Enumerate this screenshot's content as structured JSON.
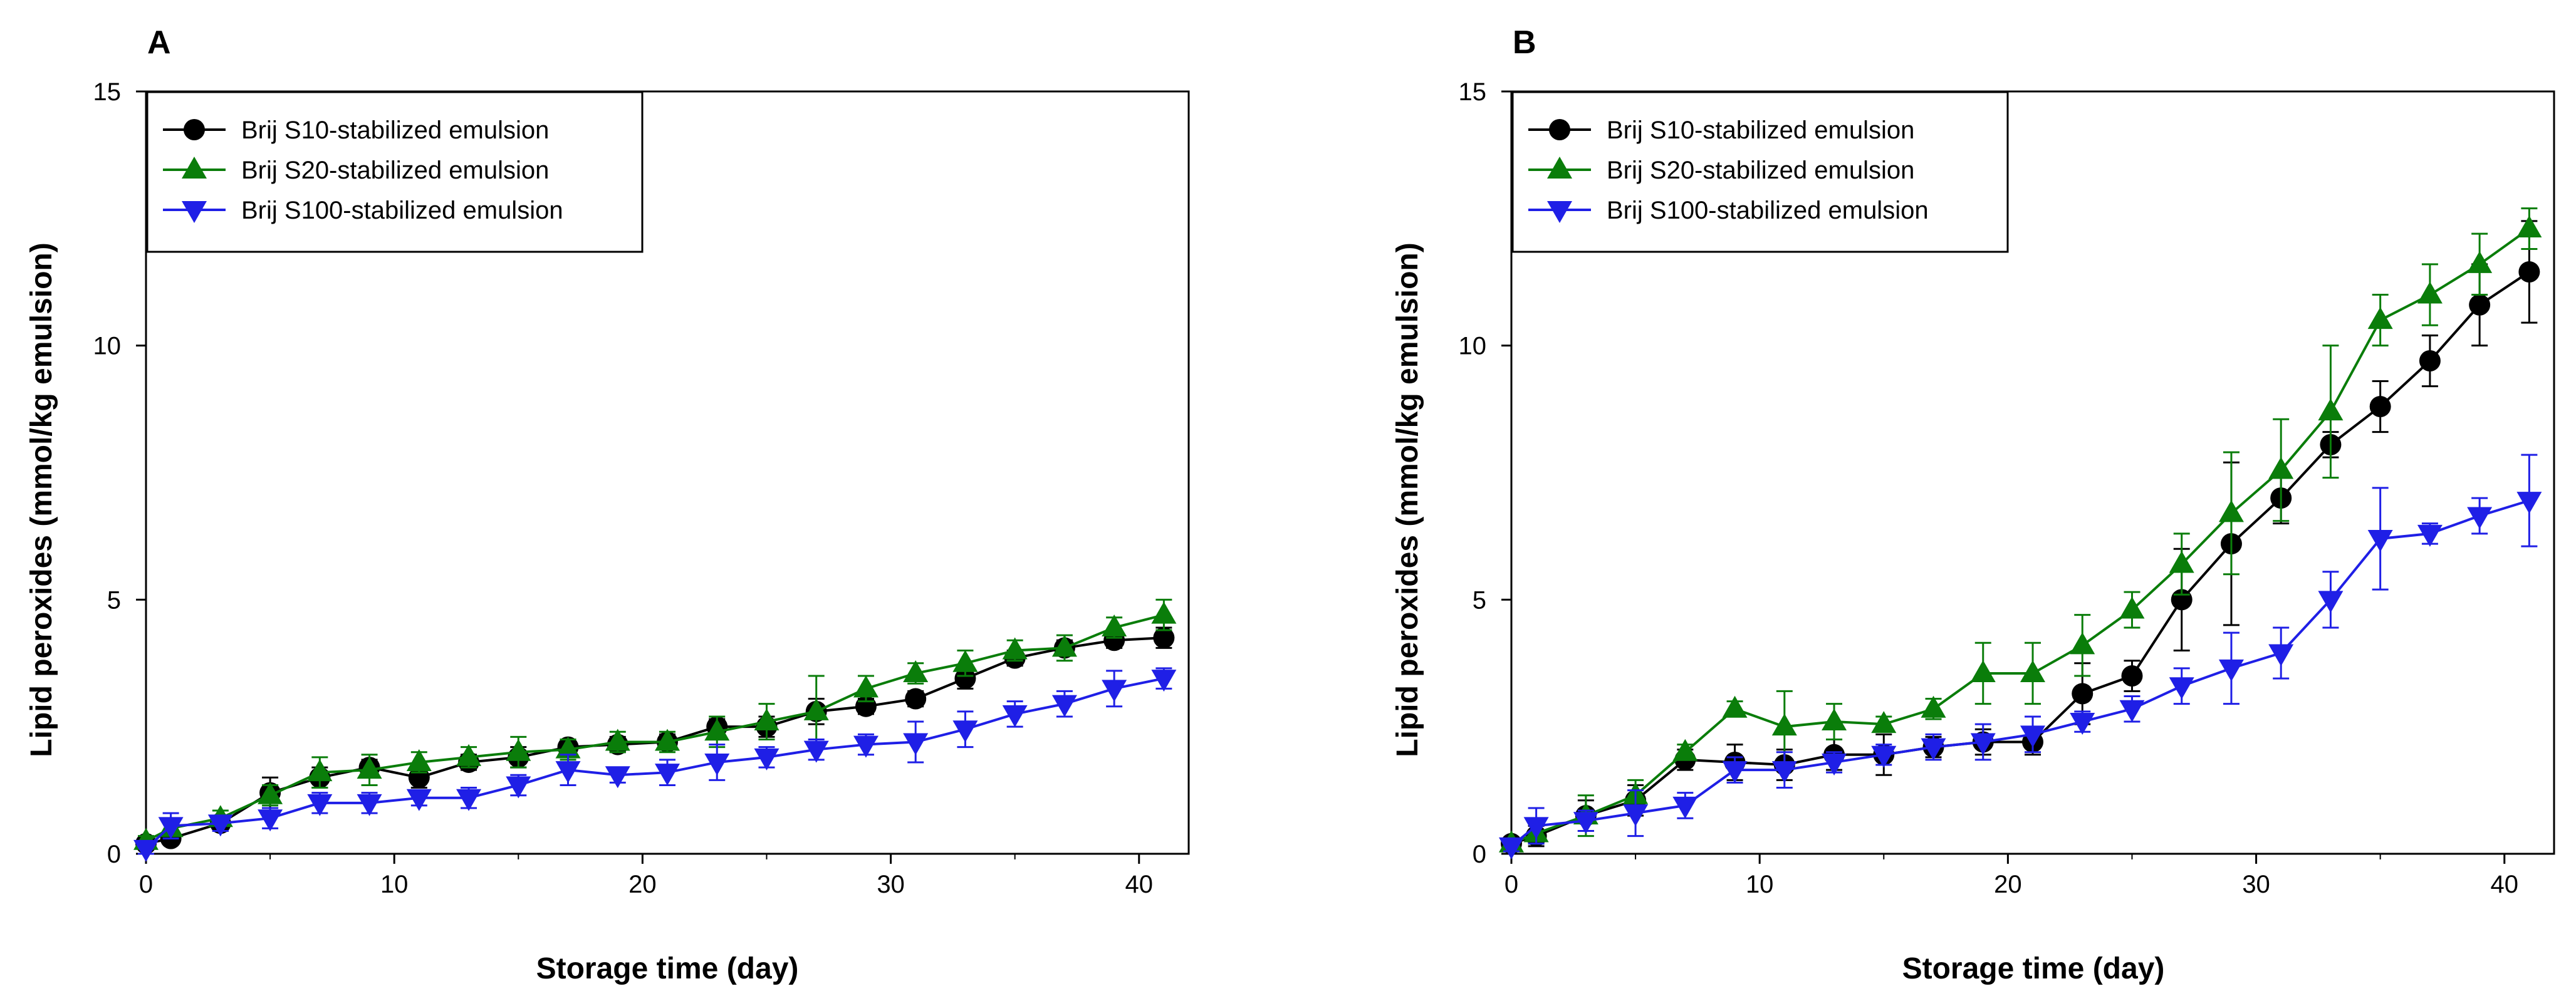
{
  "chart_data": [
    {
      "type": "line",
      "panel": "A",
      "xlabel": "Storage time (day)",
      "ylabel": "Lipid peroxides (mmol/kg emulsion)",
      "xlim": [
        0,
        42
      ],
      "ylim": [
        0,
        15
      ],
      "xticks": [
        0,
        10,
        20,
        30,
        40
      ],
      "yticks": [
        0,
        5,
        10,
        15
      ],
      "legend_position": "top-left",
      "series": [
        {
          "name": "Brij S10-stabilized emulsion",
          "color": "#000000",
          "marker": "circle",
          "x": [
            0,
            1,
            3,
            5,
            7,
            9,
            11,
            13,
            15,
            17,
            19,
            21,
            23,
            25,
            27,
            29,
            31,
            33,
            35,
            37,
            39,
            41
          ],
          "values": [
            0.2,
            0.3,
            0.6,
            1.2,
            1.5,
            1.7,
            1.5,
            1.8,
            1.9,
            2.1,
            2.15,
            2.2,
            2.5,
            2.5,
            2.8,
            2.9,
            3.05,
            3.45,
            3.85,
            4.05,
            4.2,
            4.25
          ],
          "errors": [
            0.1,
            0.1,
            0.15,
            0.3,
            0.2,
            0.15,
            0.2,
            0.15,
            0.2,
            0.1,
            0.15,
            0.15,
            0.15,
            0.2,
            0.25,
            0.15,
            0.15,
            0.2,
            0.15,
            0.15,
            0.15,
            0.2
          ]
        },
        {
          "name": "Brij S20-stabilized emulsion",
          "color": "#0a7d0a",
          "marker": "triangle-up",
          "x": [
            0,
            1,
            3,
            5,
            7,
            9,
            11,
            13,
            15,
            17,
            19,
            21,
            23,
            25,
            27,
            29,
            31,
            33,
            35,
            37,
            39,
            41
          ],
          "values": [
            0.25,
            0.5,
            0.7,
            1.15,
            1.6,
            1.65,
            1.8,
            1.9,
            2.0,
            2.05,
            2.2,
            2.2,
            2.4,
            2.6,
            2.8,
            3.25,
            3.55,
            3.75,
            4.0,
            4.05,
            4.45,
            4.7
          ],
          "errors": [
            0.1,
            0.1,
            0.15,
            0.2,
            0.3,
            0.3,
            0.2,
            0.2,
            0.3,
            0.2,
            0.2,
            0.2,
            0.3,
            0.35,
            0.7,
            0.25,
            0.2,
            0.25,
            0.2,
            0.25,
            0.2,
            0.3
          ]
        },
        {
          "name": "Brij S100-stabilized emulsion",
          "color": "#1f1fe6",
          "marker": "triangle-down",
          "x": [
            0,
            1,
            3,
            5,
            7,
            9,
            11,
            13,
            15,
            17,
            19,
            21,
            23,
            25,
            27,
            29,
            31,
            33,
            35,
            37,
            39,
            41
          ],
          "values": [
            0.1,
            0.55,
            0.6,
            0.7,
            1.0,
            1.0,
            1.1,
            1.1,
            1.35,
            1.65,
            1.55,
            1.6,
            1.8,
            1.9,
            2.05,
            2.15,
            2.2,
            2.45,
            2.75,
            2.95,
            3.25,
            3.45
          ],
          "errors": [
            0.1,
            0.25,
            0.15,
            0.2,
            0.2,
            0.2,
            0.15,
            0.2,
            0.2,
            0.3,
            0.15,
            0.25,
            0.35,
            0.2,
            0.2,
            0.2,
            0.4,
            0.35,
            0.25,
            0.25,
            0.35,
            0.2
          ]
        }
      ]
    },
    {
      "type": "line",
      "panel": "B",
      "xlabel": "Storage time (day)",
      "ylabel": "Lipid peroxides (mmol/kg emulsion)",
      "xlim": [
        0,
        42
      ],
      "ylim": [
        0,
        15
      ],
      "xticks": [
        0,
        10,
        20,
        30,
        40
      ],
      "yticks": [
        0,
        5,
        10,
        15
      ],
      "legend_position": "top-left",
      "series": [
        {
          "name": "Brij S10-stabilized emulsion",
          "color": "#000000",
          "marker": "circle",
          "x": [
            0,
            1,
            3,
            5,
            7,
            9,
            11,
            13,
            15,
            17,
            19,
            21,
            23,
            25,
            27,
            29,
            31,
            33,
            35,
            37,
            39,
            41
          ],
          "values": [
            0.2,
            0.35,
            0.75,
            1.05,
            1.85,
            1.8,
            1.75,
            1.95,
            1.95,
            2.1,
            2.2,
            2.2,
            3.15,
            3.5,
            5.0,
            6.1,
            7.0,
            8.05,
            8.8,
            9.7,
            10.8,
            11.45
          ],
          "errors": [
            0.1,
            0.2,
            0.3,
            0.3,
            0.2,
            0.35,
            0.3,
            0.3,
            0.4,
            0.2,
            0.25,
            0.25,
            0.6,
            0.3,
            1.0,
            1.6,
            0.5,
            0.25,
            0.5,
            0.5,
            0.8,
            1.0
          ]
        },
        {
          "name": "Brij S20-stabilized emulsion",
          "color": "#0a7d0a",
          "marker": "triangle-up",
          "x": [
            0,
            1,
            3,
            5,
            7,
            9,
            11,
            13,
            15,
            17,
            19,
            21,
            23,
            25,
            27,
            29,
            31,
            33,
            35,
            37,
            39,
            41
          ],
          "values": [
            0.2,
            0.4,
            0.75,
            1.15,
            2.0,
            2.85,
            2.5,
            2.6,
            2.55,
            2.85,
            3.55,
            3.55,
            4.1,
            4.8,
            5.7,
            6.7,
            7.55,
            8.7,
            10.5,
            11.0,
            11.6,
            12.3
          ],
          "errors": [
            0.1,
            0.2,
            0.4,
            0.3,
            0.15,
            0.15,
            0.7,
            0.35,
            0.15,
            0.2,
            0.6,
            0.6,
            0.6,
            0.35,
            0.6,
            1.2,
            1.0,
            1.3,
            0.5,
            0.6,
            0.6,
            0.4
          ]
        },
        {
          "name": "Brij S100-stabilized emulsion",
          "color": "#1f1fe6",
          "marker": "triangle-down",
          "x": [
            0,
            1,
            3,
            5,
            7,
            9,
            11,
            13,
            15,
            17,
            19,
            21,
            23,
            25,
            27,
            29,
            31,
            33,
            35,
            37,
            39,
            41
          ],
          "values": [
            0.15,
            0.55,
            0.65,
            0.8,
            0.95,
            1.65,
            1.65,
            1.8,
            1.95,
            2.1,
            2.2,
            2.35,
            2.6,
            2.85,
            3.3,
            3.65,
            3.95,
            5.0,
            6.2,
            6.3,
            6.65,
            6.95
          ],
          "errors": [
            0.1,
            0.35,
            0.2,
            0.45,
            0.25,
            0.25,
            0.35,
            0.2,
            0.2,
            0.25,
            0.35,
            0.35,
            0.2,
            0.25,
            0.35,
            0.7,
            0.5,
            0.55,
            1.0,
            0.2,
            0.35,
            0.9
          ]
        }
      ]
    }
  ]
}
